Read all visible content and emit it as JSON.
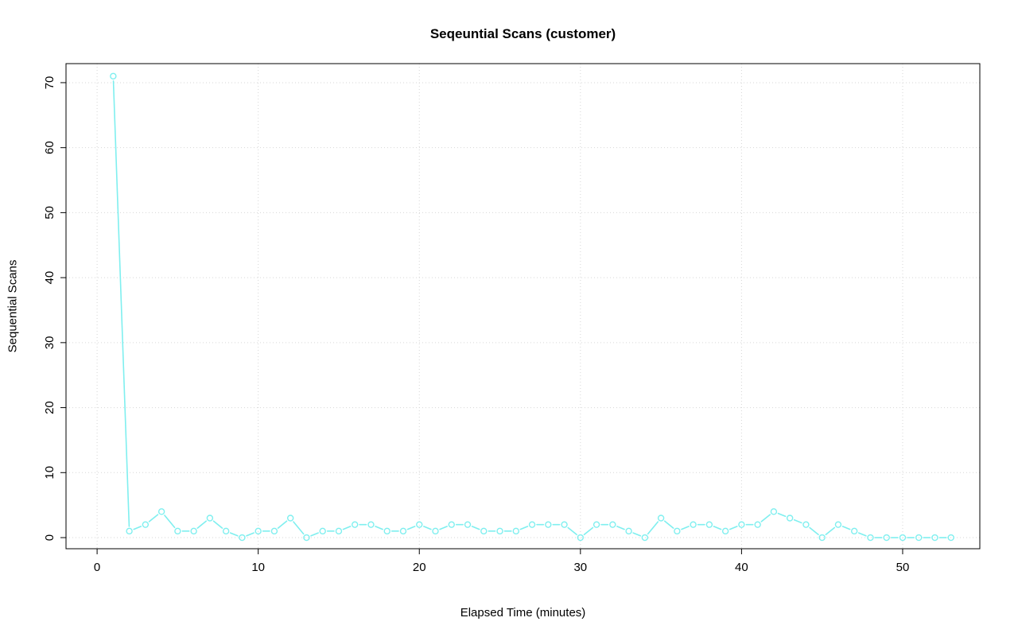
{
  "chart_data": {
    "type": "line",
    "title": "Seqeuntial Scans (customer)",
    "xlabel": "Elapsed Time (minutes)",
    "ylabel": "Sequential Scans",
    "x": [
      1,
      2,
      3,
      4,
      5,
      6,
      7,
      8,
      9,
      10,
      11,
      12,
      13,
      14,
      15,
      16,
      17,
      18,
      19,
      20,
      21,
      22,
      23,
      24,
      25,
      26,
      27,
      28,
      29,
      30,
      31,
      32,
      33,
      34,
      35,
      36,
      37,
      38,
      39,
      40,
      41,
      42,
      43,
      44,
      45,
      46,
      47,
      48,
      49,
      50,
      51,
      52,
      53
    ],
    "values": [
      71,
      1,
      2,
      4,
      1,
      1,
      3,
      1,
      0,
      1,
      1,
      3,
      0,
      1,
      1,
      2,
      2,
      1,
      1,
      2,
      1,
      2,
      2,
      1,
      1,
      1,
      2,
      2,
      2,
      0,
      2,
      2,
      1,
      0,
      3,
      1,
      2,
      2,
      1,
      2,
      2,
      4,
      3,
      2,
      0,
      2,
      1,
      0,
      0,
      0,
      0,
      0,
      0
    ],
    "x_ticks": [
      0,
      10,
      20,
      30,
      40,
      50
    ],
    "y_ticks": [
      0,
      10,
      20,
      30,
      40,
      50,
      60,
      70
    ],
    "xlim": [
      -1.93,
      54.79
    ],
    "ylim": [
      -1.71,
      72.93
    ],
    "line_color": "#7FEFEF",
    "marker": "open-circle",
    "grid_style": "dotted",
    "grid_color": "#D6D6D6",
    "box_color": "#000000",
    "background_color": "#FFFFFF",
    "legend": "none"
  }
}
